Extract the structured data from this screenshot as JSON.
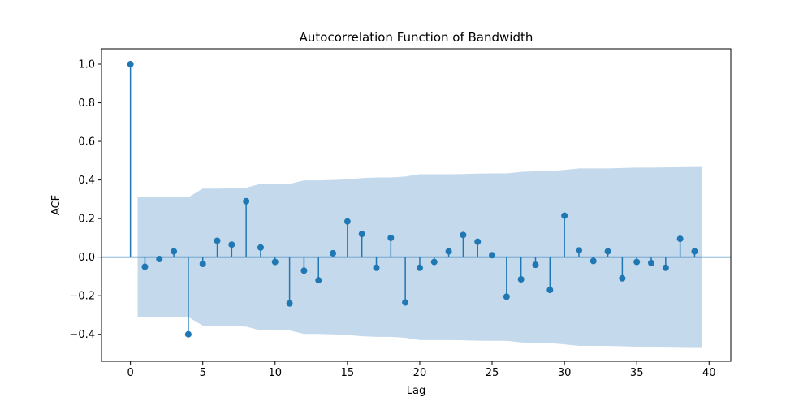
{
  "chart_data": {
    "type": "stem",
    "title": "Autocorrelation Function of Bandwidth",
    "xlabel": "Lag",
    "ylabel": "ACF",
    "xlim": [
      -2,
      41.5
    ],
    "ylim": [
      -0.54,
      1.08
    ],
    "xticks": [
      0,
      5,
      10,
      15,
      20,
      25,
      30,
      35,
      40
    ],
    "yticks": [
      -0.4,
      -0.2,
      0.0,
      0.2,
      0.4,
      0.6,
      0.8,
      1.0
    ],
    "ytick_labels": [
      "−0.4",
      "−0.2",
      "0.0",
      "0.2",
      "0.4",
      "0.6",
      "0.8",
      "1.0"
    ],
    "lags": [
      0,
      1,
      2,
      3,
      4,
      5,
      6,
      7,
      8,
      9,
      10,
      11,
      12,
      13,
      14,
      15,
      16,
      17,
      18,
      19,
      20,
      21,
      22,
      23,
      24,
      25,
      26,
      27,
      28,
      29,
      30,
      31,
      32,
      33,
      34,
      35,
      36,
      37,
      38,
      39
    ],
    "acf": [
      1.0,
      -0.05,
      -0.01,
      0.03,
      -0.4,
      -0.035,
      0.085,
      0.065,
      0.29,
      0.05,
      -0.025,
      -0.24,
      -0.07,
      -0.12,
      0.02,
      0.185,
      0.12,
      -0.055,
      0.1,
      -0.235,
      -0.055,
      -0.025,
      0.03,
      0.115,
      0.08,
      0.01,
      -0.205,
      -0.115,
      -0.04,
      -0.17,
      0.215,
      0.035,
      -0.02,
      0.03,
      -0.11,
      -0.025,
      -0.03,
      -0.055,
      0.095,
      0.03
    ],
    "confidence_band": {
      "x": [
        0.5,
        1,
        2,
        3,
        4,
        5,
        6,
        7,
        8,
        9,
        10,
        11,
        12,
        13,
        14,
        15,
        16,
        17,
        18,
        19,
        20,
        21,
        22,
        23,
        24,
        25,
        26,
        27,
        28,
        29,
        30,
        31,
        32,
        33,
        34,
        35,
        36,
        37,
        38,
        39,
        39.5
      ],
      "upper": [
        0.31,
        0.31,
        0.31,
        0.31,
        0.31,
        0.355,
        0.355,
        0.357,
        0.36,
        0.38,
        0.38,
        0.38,
        0.398,
        0.398,
        0.4,
        0.403,
        0.41,
        0.413,
        0.413,
        0.418,
        0.43,
        0.43,
        0.43,
        0.431,
        0.433,
        0.434,
        0.434,
        0.442,
        0.445,
        0.446,
        0.452,
        0.46,
        0.46,
        0.46,
        0.462,
        0.464,
        0.464,
        0.465,
        0.466,
        0.467,
        0.467
      ]
    },
    "colors": {
      "stem": "#1f77b4",
      "band": "#c5d9ec",
      "baseline": "#1f77b4"
    },
    "grid": false
  }
}
